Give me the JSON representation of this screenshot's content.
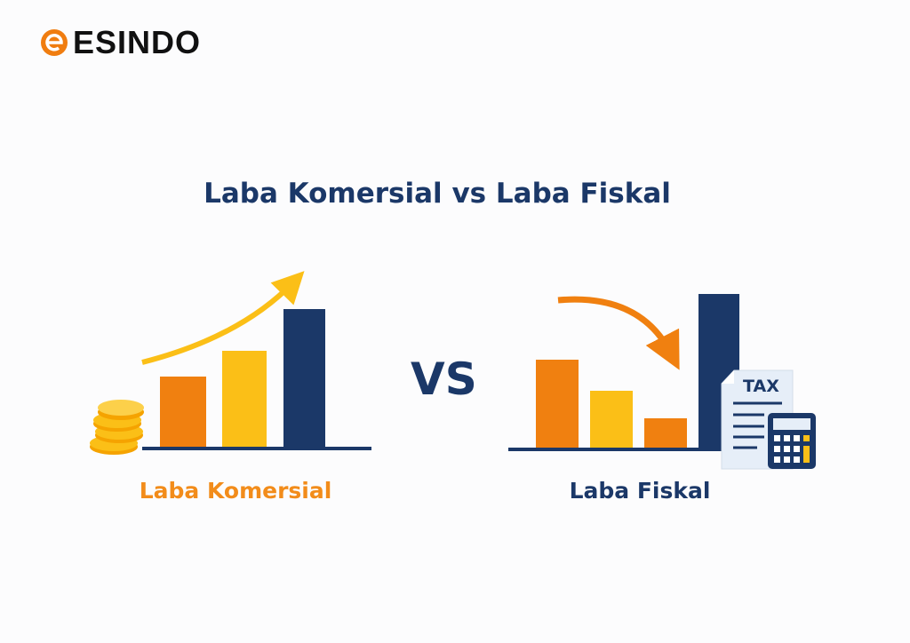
{
  "brand": {
    "name": "ESINDO",
    "logo_letter": "e"
  },
  "title": "Laba Komersial vs Laba Fiskal",
  "vs_label": "VS",
  "left_panel": {
    "label": "Laba Komersial",
    "trend": "up",
    "icon": "coins-icon"
  },
  "right_panel": {
    "label": "Laba Fiskal",
    "trend": "down",
    "icon": "tax-document-icon",
    "document_label": "TAX"
  },
  "colors": {
    "navy": "#1b3868",
    "orange": "#f08010",
    "yellow": "#fbbf17",
    "text_orange": "#f28c1a"
  }
}
